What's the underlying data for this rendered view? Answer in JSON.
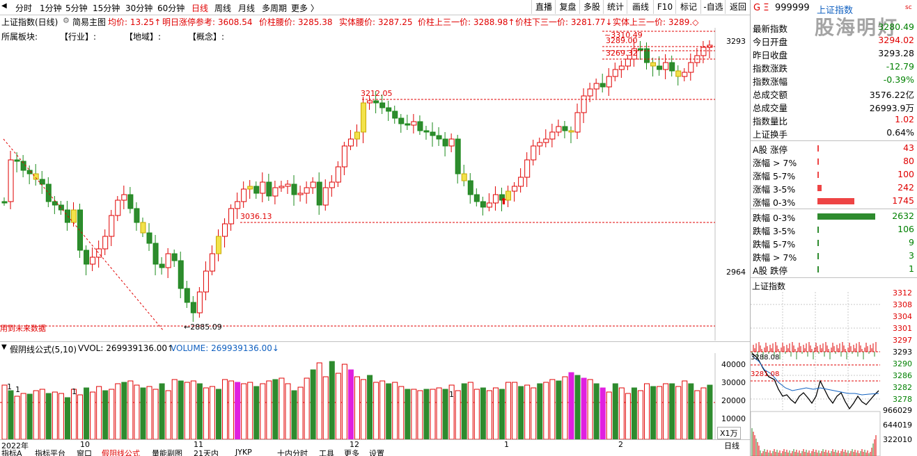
{
  "toolbar": {
    "periods": [
      "分时",
      "1分钟",
      "5分钟",
      "15分钟",
      "30分钟",
      "60分钟",
      "日线",
      "周线",
      "月线",
      "多周期",
      "更多 〉"
    ],
    "active_period": "日线",
    "right_buttons": [
      "直播",
      "复盘",
      "多股",
      "统计",
      "画线",
      "F10",
      "标记",
      "-自选",
      "返回"
    ]
  },
  "main_title": "上证指数(日线)",
  "main_formula": "简易主图",
  "indicators": [
    {
      "label": "均价: 13.25↑"
    },
    {
      "label": "明日涨停参考: 3608.54"
    },
    {
      "label": "价柱腰价: 3285.38"
    },
    {
      "label": "实体腰价: 3287.25"
    },
    {
      "label": "价柱上三一价: 3288.98↑"
    },
    {
      "label": "价柱下三一价: 3281.77↓"
    },
    {
      "label": "实体上三一价: 3289.◇"
    }
  ],
  "sector_line": {
    "label": "所属板块:",
    "industry": "【行业】:",
    "region": "【地域】:",
    "concept": "【概念】:"
  },
  "price_labels": {
    "high": "3310.49",
    "p1": "3289.00",
    "p2": "3269.32",
    "mid_high": "3212.05",
    "low1": "3036.13",
    "low2": "←2885.09",
    "future_note": "用到未来数据"
  },
  "price_axis": [
    "3293",
    "2964"
  ],
  "volume_header": {
    "title": "假阴线公式(5,10)",
    "vvol": "VVOL: 269939136.00↑",
    "volume": "VOLUME: 269939136.00↓"
  },
  "volume_axis": [
    "40000",
    "30000",
    "20000",
    "10000"
  ],
  "volume_unit": "X1万",
  "date_axis": [
    "2022年",
    "10",
    "11",
    "12",
    "1",
    "2"
  ],
  "bottom_tabs": [
    "指标A",
    "指标平台",
    "窗口",
    "假阴线公式",
    "量能副图",
    "21天内",
    "JYKP",
    "十内分时",
    "工具",
    "更多",
    "设置"
  ],
  "chart_data": {
    "type": "candlestick",
    "symbol": "上证指数",
    "y_ticks": [
      3293,
      2964
    ],
    "ylim": [
      2860,
      3320
    ],
    "volume_ylim": [
      0,
      50000
    ]
  },
  "right_panel": {
    "logo": "G Ξ",
    "code": "999999",
    "name": "上证指数",
    "badge": "sc",
    "watermark": "股海明灯",
    "rows": [
      {
        "label": "最新指数",
        "value": "3280.49",
        "color": "green"
      },
      {
        "label": "今日开盘",
        "value": "3294.02",
        "color": "red"
      },
      {
        "label": "昨日收盘",
        "value": "3293.28",
        "color": "black"
      },
      {
        "label": "指数涨跌",
        "value": "-12.79",
        "color": "green"
      },
      {
        "label": "指数涨幅",
        "value": "-0.39%",
        "color": "green"
      },
      {
        "label": "总成交额",
        "value": "3576.22亿",
        "color": "black"
      },
      {
        "label": "总成交量",
        "value": "26993.9万",
        "color": "black"
      },
      {
        "label": "指数量比",
        "value": "1.02",
        "color": "red"
      },
      {
        "label": "上证换手",
        "value": "0.64%",
        "color": "black"
      }
    ],
    "up_rows": [
      {
        "label": "A股 涨停",
        "value": "43",
        "frac": 0.01
      },
      {
        "label": "涨幅 > 7%",
        "value": "80",
        "frac": 0.02
      },
      {
        "label": "涨幅 5-7%",
        "value": "100",
        "frac": 0.025
      },
      {
        "label": "涨幅 3-5%",
        "value": "242",
        "frac": 0.07
      },
      {
        "label": "涨幅 0-3%",
        "value": "1745",
        "frac": 0.66
      }
    ],
    "down_rows": [
      {
        "label": "跌幅 0-3%",
        "value": "2632",
        "frac": 1.0
      },
      {
        "label": "跌幅 3-5%",
        "value": "106",
        "frac": 0.03
      },
      {
        "label": "跌幅 5-7%",
        "value": "9",
        "frac": 0.004
      },
      {
        "label": "跌幅 > 7%",
        "value": "3",
        "frac": 0.002
      },
      {
        "label": "A股 跌停",
        "value": "1",
        "frac": 0.001
      }
    ],
    "mini_title": "上证指数",
    "mini_axis": [
      "3312",
      "3308",
      "3304",
      "3301",
      "3297",
      "3293",
      "3290",
      "3286",
      "3282",
      "3278"
    ],
    "mini_vol_axis": [
      "966029",
      "644019",
      "322010"
    ],
    "mini_labels": [
      "3288.08",
      "3281.08"
    ]
  }
}
